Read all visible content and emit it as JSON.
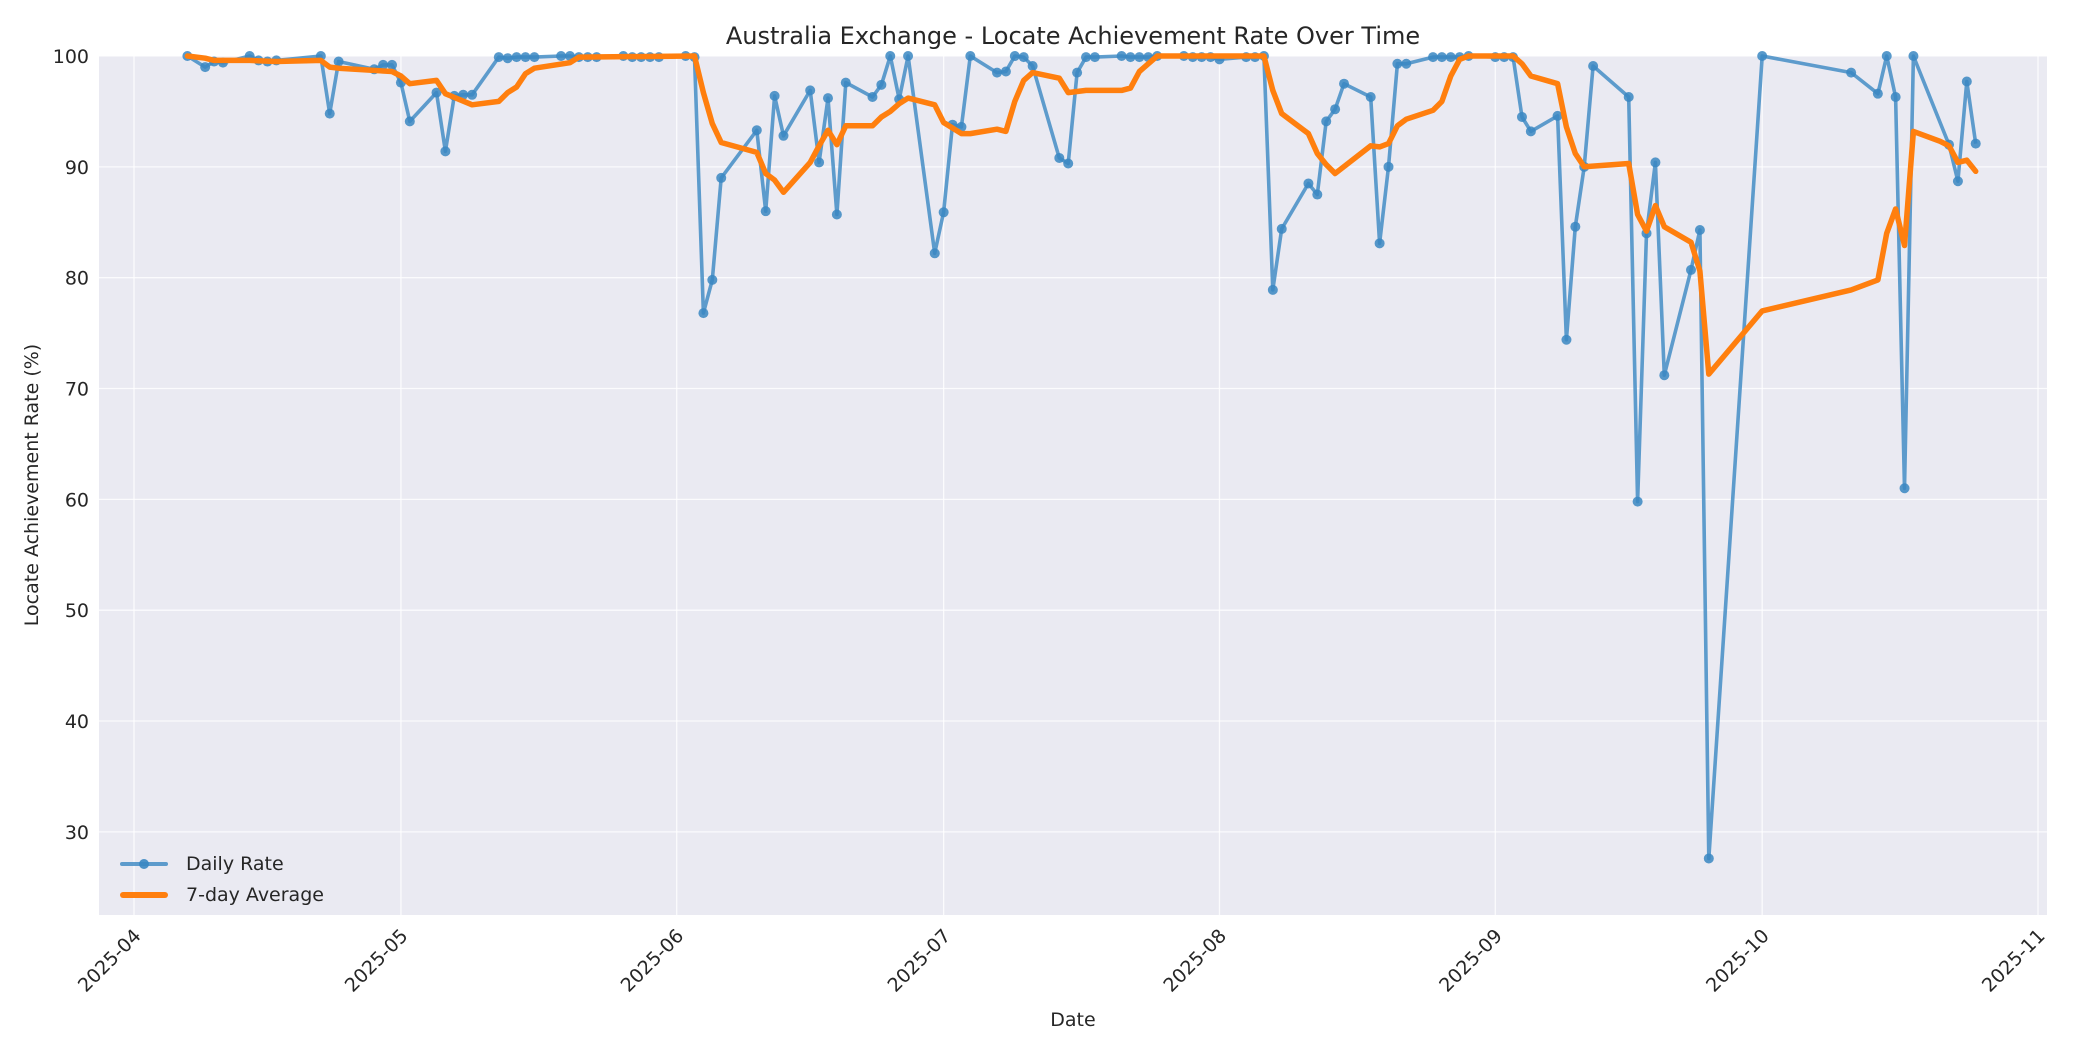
{
  "chart_data": {
    "type": "line",
    "title": "Australia Exchange - Locate Achievement Rate Over Time",
    "xlabel": "Date",
    "ylabel": "Locate Achievement Rate (%)",
    "ylim": [
      22.5,
      100
    ],
    "xlim": [
      "2025-03-29",
      "2025-11-02"
    ],
    "grid": true,
    "legend_position": "lower left",
    "x_ticks": [
      "2025-04",
      "2025-05",
      "2025-06",
      "2025-07",
      "2025-08",
      "2025-09",
      "2025-10",
      "2025-11"
    ],
    "y_ticks": [
      30,
      40,
      50,
      60,
      70,
      80,
      90,
      100
    ],
    "colors": {
      "daily": "#3a87c2",
      "average": "#ff7f0e",
      "plot_bg": "#eaeaf2",
      "grid": "#ffffff"
    },
    "series": [
      {
        "name": "Daily Rate",
        "marker": "circle",
        "points": [
          [
            "2025-04-07",
            100
          ],
          [
            "2025-04-09",
            99.0
          ],
          [
            "2025-04-10",
            99.5
          ],
          [
            "2025-04-11",
            99.4
          ],
          [
            "2025-04-14",
            100
          ],
          [
            "2025-04-15",
            99.6
          ],
          [
            "2025-04-16",
            99.5
          ],
          [
            "2025-04-17",
            99.6
          ],
          [
            "2025-04-22",
            100
          ],
          [
            "2025-04-23",
            94.8
          ],
          [
            "2025-04-24",
            99.5
          ],
          [
            "2025-04-28",
            98.8
          ],
          [
            "2025-04-29",
            99.2
          ],
          [
            "2025-04-30",
            99.2
          ],
          [
            "2025-05-01",
            97.6
          ],
          [
            "2025-05-02",
            94.1
          ],
          [
            "2025-05-05",
            96.7
          ],
          [
            "2025-05-06",
            91.4
          ],
          [
            "2025-05-07",
            96.4
          ],
          [
            "2025-05-08",
            96.5
          ],
          [
            "2025-05-09",
            96.5
          ],
          [
            "2025-05-12",
            99.9
          ],
          [
            "2025-05-13",
            99.8
          ],
          [
            "2025-05-14",
            99.9
          ],
          [
            "2025-05-15",
            99.9
          ],
          [
            "2025-05-16",
            99.9
          ],
          [
            "2025-05-19",
            100
          ],
          [
            "2025-05-20",
            100
          ],
          [
            "2025-05-21",
            99.9
          ],
          [
            "2025-05-22",
            99.9
          ],
          [
            "2025-05-23",
            99.9
          ],
          [
            "2025-05-26",
            100
          ],
          [
            "2025-05-27",
            99.9
          ],
          [
            "2025-05-28",
            99.9
          ],
          [
            "2025-05-29",
            99.9
          ],
          [
            "2025-05-30",
            99.9
          ],
          [
            "2025-06-02",
            100
          ],
          [
            "2025-06-03",
            99.9
          ],
          [
            "2025-06-04",
            76.8
          ],
          [
            "2025-06-05",
            79.8
          ],
          [
            "2025-06-06",
            89.0
          ],
          [
            "2025-06-10",
            93.3
          ],
          [
            "2025-06-11",
            86.0
          ],
          [
            "2025-06-12",
            96.4
          ],
          [
            "2025-06-13",
            92.8
          ],
          [
            "2025-06-16",
            96.9
          ],
          [
            "2025-06-17",
            90.4
          ],
          [
            "2025-06-18",
            96.2
          ],
          [
            "2025-06-19",
            85.7
          ],
          [
            "2025-06-20",
            97.6
          ],
          [
            "2025-06-23",
            96.3
          ],
          [
            "2025-06-24",
            97.4
          ],
          [
            "2025-06-25",
            100
          ],
          [
            "2025-06-26",
            96.1
          ],
          [
            "2025-06-27",
            100
          ],
          [
            "2025-06-30",
            82.2
          ],
          [
            "2025-07-01",
            85.9
          ],
          [
            "2025-07-02",
            93.8
          ],
          [
            "2025-07-03",
            93.6
          ],
          [
            "2025-07-04",
            100
          ],
          [
            "2025-07-07",
            98.5
          ],
          [
            "2025-07-08",
            98.6
          ],
          [
            "2025-07-09",
            100
          ],
          [
            "2025-07-10",
            99.9
          ],
          [
            "2025-07-11",
            99.1
          ],
          [
            "2025-07-14",
            90.8
          ],
          [
            "2025-07-15",
            90.3
          ],
          [
            "2025-07-16",
            98.5
          ],
          [
            "2025-07-17",
            99.9
          ],
          [
            "2025-07-18",
            99.9
          ],
          [
            "2025-07-21",
            100
          ],
          [
            "2025-07-22",
            99.9
          ],
          [
            "2025-07-23",
            99.9
          ],
          [
            "2025-07-24",
            99.9
          ],
          [
            "2025-07-25",
            100
          ],
          [
            "2025-07-28",
            100
          ],
          [
            "2025-07-29",
            99.9
          ],
          [
            "2025-07-30",
            99.9
          ],
          [
            "2025-07-31",
            99.9
          ],
          [
            "2025-08-01",
            99.7
          ],
          [
            "2025-08-04",
            99.9
          ],
          [
            "2025-08-05",
            99.9
          ],
          [
            "2025-08-06",
            100
          ],
          [
            "2025-08-07",
            78.9
          ],
          [
            "2025-08-08",
            84.4
          ],
          [
            "2025-08-11",
            88.5
          ],
          [
            "2025-08-12",
            87.5
          ],
          [
            "2025-08-13",
            94.1
          ],
          [
            "2025-08-14",
            95.2
          ],
          [
            "2025-08-15",
            97.5
          ],
          [
            "2025-08-18",
            96.3
          ],
          [
            "2025-08-19",
            83.1
          ],
          [
            "2025-08-20",
            90.0
          ],
          [
            "2025-08-21",
            99.3
          ],
          [
            "2025-08-22",
            99.3
          ],
          [
            "2025-08-25",
            99.9
          ],
          [
            "2025-08-26",
            99.9
          ],
          [
            "2025-08-27",
            99.9
          ],
          [
            "2025-08-28",
            99.9
          ],
          [
            "2025-08-29",
            100
          ],
          [
            "2025-09-01",
            99.9
          ],
          [
            "2025-09-02",
            99.9
          ],
          [
            "2025-09-03",
            99.9
          ],
          [
            "2025-09-04",
            94.5
          ],
          [
            "2025-09-05",
            93.2
          ],
          [
            "2025-09-08",
            94.6
          ],
          [
            "2025-09-09",
            74.4
          ],
          [
            "2025-09-10",
            84.6
          ],
          [
            "2025-09-11",
            90.0
          ],
          [
            "2025-09-12",
            99.1
          ],
          [
            "2025-09-16",
            96.3
          ],
          [
            "2025-09-17",
            59.8
          ],
          [
            "2025-09-18",
            84.0
          ],
          [
            "2025-09-19",
            90.4
          ],
          [
            "2025-09-20",
            71.2
          ],
          [
            "2025-09-23",
            80.7
          ],
          [
            "2025-09-24",
            84.3
          ],
          [
            "2025-09-25",
            27.6
          ],
          [
            "2025-10-01",
            100
          ],
          [
            "2025-10-11",
            98.5
          ],
          [
            "2025-10-14",
            96.6
          ],
          [
            "2025-10-15",
            100
          ],
          [
            "2025-10-16",
            96.3
          ],
          [
            "2025-10-17",
            61.0
          ],
          [
            "2025-10-18",
            100
          ],
          [
            "2025-10-22",
            92.0
          ],
          [
            "2025-10-23",
            88.7
          ],
          [
            "2025-10-24",
            97.7
          ],
          [
            "2025-10-25",
            92.1
          ]
        ]
      },
      {
        "name": "7-day Average",
        "marker": "none",
        "points": [
          [
            "2025-04-07",
            100
          ],
          [
            "2025-04-09",
            99.8
          ],
          [
            "2025-04-10",
            99.6
          ],
          [
            "2025-04-11",
            99.6
          ],
          [
            "2025-04-14",
            99.6
          ],
          [
            "2025-04-17",
            99.5
          ],
          [
            "2025-04-22",
            99.6
          ],
          [
            "2025-04-23",
            99.0
          ],
          [
            "2025-04-24",
            98.9
          ],
          [
            "2025-04-30",
            98.6
          ],
          [
            "2025-05-01",
            98.2
          ],
          [
            "2025-05-02",
            97.5
          ],
          [
            "2025-05-05",
            97.8
          ],
          [
            "2025-05-06",
            96.6
          ],
          [
            "2025-05-09",
            95.6
          ],
          [
            "2025-05-12",
            95.9
          ],
          [
            "2025-05-13",
            96.7
          ],
          [
            "2025-05-14",
            97.2
          ],
          [
            "2025-05-15",
            98.4
          ],
          [
            "2025-05-16",
            98.9
          ],
          [
            "2025-05-20",
            99.4
          ],
          [
            "2025-05-21",
            99.9
          ],
          [
            "2025-06-03",
            100
          ],
          [
            "2025-06-04",
            96.7
          ],
          [
            "2025-06-05",
            93.9
          ],
          [
            "2025-06-06",
            92.2
          ],
          [
            "2025-06-10",
            91.3
          ],
          [
            "2025-06-11",
            89.4
          ],
          [
            "2025-06-12",
            88.8
          ],
          [
            "2025-06-13",
            87.7
          ],
          [
            "2025-06-16",
            90.4
          ],
          [
            "2025-06-17",
            91.9
          ],
          [
            "2025-06-18",
            93.3
          ],
          [
            "2025-06-19",
            92.0
          ],
          [
            "2025-06-20",
            93.7
          ],
          [
            "2025-06-23",
            93.7
          ],
          [
            "2025-06-24",
            94.5
          ],
          [
            "2025-06-25",
            95.0
          ],
          [
            "2025-06-26",
            95.7
          ],
          [
            "2025-06-27",
            96.2
          ],
          [
            "2025-06-30",
            95.6
          ],
          [
            "2025-07-01",
            94.0
          ],
          [
            "2025-07-02",
            93.5
          ],
          [
            "2025-07-03",
            93.0
          ],
          [
            "2025-07-04",
            93.0
          ],
          [
            "2025-07-07",
            93.4
          ],
          [
            "2025-07-08",
            93.2
          ],
          [
            "2025-07-09",
            95.9
          ],
          [
            "2025-07-10",
            97.8
          ],
          [
            "2025-07-11",
            98.5
          ],
          [
            "2025-07-14",
            98.0
          ],
          [
            "2025-07-15",
            96.7
          ],
          [
            "2025-07-17",
            96.9
          ],
          [
            "2025-07-21",
            96.9
          ],
          [
            "2025-07-22",
            97.1
          ],
          [
            "2025-07-23",
            98.6
          ],
          [
            "2025-07-25",
            100
          ],
          [
            "2025-08-06",
            100
          ],
          [
            "2025-08-07",
            96.9
          ],
          [
            "2025-08-08",
            94.8
          ],
          [
            "2025-08-11",
            93.0
          ],
          [
            "2025-08-12",
            91.2
          ],
          [
            "2025-08-13",
            90.2
          ],
          [
            "2025-08-14",
            89.4
          ],
          [
            "2025-08-18",
            91.9
          ],
          [
            "2025-08-19",
            91.8
          ],
          [
            "2025-08-20",
            92.1
          ],
          [
            "2025-08-21",
            93.7
          ],
          [
            "2025-08-22",
            94.3
          ],
          [
            "2025-08-25",
            95.1
          ],
          [
            "2025-08-26",
            95.9
          ],
          [
            "2025-08-27",
            98.2
          ],
          [
            "2025-08-28",
            99.7
          ],
          [
            "2025-08-29",
            100
          ],
          [
            "2025-09-03",
            100
          ],
          [
            "2025-09-04",
            99.3
          ],
          [
            "2025-09-05",
            98.2
          ],
          [
            "2025-09-08",
            97.5
          ],
          [
            "2025-09-09",
            93.6
          ],
          [
            "2025-09-10",
            91.2
          ],
          [
            "2025-09-11",
            90.0
          ],
          [
            "2025-09-16",
            90.3
          ],
          [
            "2025-09-17",
            85.7
          ],
          [
            "2025-09-18",
            84.2
          ],
          [
            "2025-09-19",
            86.5
          ],
          [
            "2025-09-20",
            84.6
          ],
          [
            "2025-09-23",
            83.2
          ],
          [
            "2025-09-24",
            80.6
          ],
          [
            "2025-09-25",
            71.3
          ],
          [
            "2025-10-01",
            77.0
          ],
          [
            "2025-10-11",
            78.9
          ],
          [
            "2025-10-14",
            79.8
          ],
          [
            "2025-10-15",
            84.0
          ],
          [
            "2025-10-16",
            86.2
          ],
          [
            "2025-10-17",
            82.9
          ],
          [
            "2025-10-18",
            93.2
          ],
          [
            "2025-10-21",
            92.3
          ],
          [
            "2025-10-22",
            91.9
          ],
          [
            "2025-10-23",
            90.4
          ],
          [
            "2025-10-24",
            90.6
          ],
          [
            "2025-10-25",
            89.6
          ]
        ]
      }
    ]
  },
  "legend": {
    "items": [
      {
        "label": "Daily Rate"
      },
      {
        "label": "7-day Average"
      }
    ]
  }
}
